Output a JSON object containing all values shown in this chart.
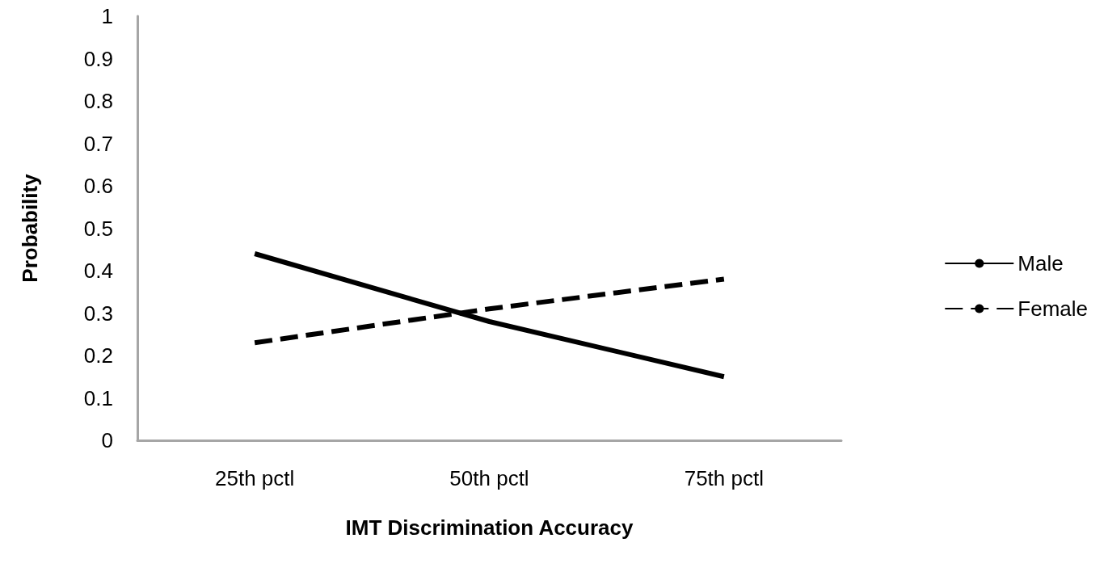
{
  "chart_data": {
    "type": "line",
    "xlabel": "IMT Discrimination Accuracy",
    "ylabel": "Probability",
    "categories": [
      "25th pctl",
      "50th pctl",
      "75th pctl"
    ],
    "series": [
      {
        "name": "Male",
        "color": "#000000",
        "line_style": "solid",
        "values": [
          0.44,
          0.28,
          0.15
        ]
      },
      {
        "name": "Female",
        "color": "#000000",
        "line_style": "dashed",
        "values": [
          0.23,
          0.31,
          0.38
        ]
      }
    ],
    "ylim": [
      0,
      1
    ],
    "yticks": [
      0,
      0.1,
      0.2,
      0.3,
      0.4,
      0.5,
      0.6,
      0.7,
      0.8,
      0.9,
      1
    ],
    "grid": false,
    "legend": "right",
    "marker": "none"
  }
}
